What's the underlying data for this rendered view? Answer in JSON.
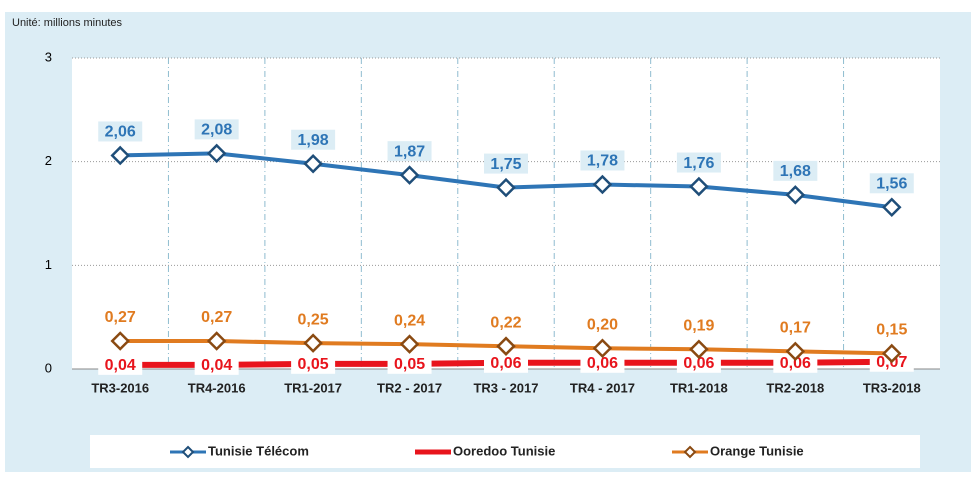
{
  "chart_data": {
    "type": "line",
    "annotation": "Unité: millions minutes",
    "categories": [
      "TR3-2016",
      "TR4-2016",
      "TR1-2017",
      "TR2 - 2017",
      "TR3 - 2017",
      "TR4 - 2017",
      "TR1-2018",
      "TR2-2018",
      "TR3-2018"
    ],
    "series": [
      {
        "name": "Tunisie Télécom",
        "color": "#2e75b6",
        "values": [
          2.06,
          2.08,
          1.98,
          1.87,
          1.75,
          1.78,
          1.76,
          1.68,
          1.56
        ],
        "value_labels": [
          "2,06",
          "2,08",
          "1,98",
          "1,87",
          "1,75",
          "1,78",
          "1,76",
          "1,68",
          "1,56"
        ]
      },
      {
        "name": "Ooredoo Tunisie",
        "color": "#e8141c",
        "values": [
          0.04,
          0.04,
          0.05,
          0.05,
          0.06,
          0.06,
          0.06,
          0.06,
          0.07
        ],
        "value_labels": [
          "0,04",
          "0,04",
          "0,05",
          "0,05",
          "0,06",
          "0,06",
          "0,06",
          "0,06",
          "0,07"
        ]
      },
      {
        "name": "Orange Tunisie",
        "color": "#e07b20",
        "values": [
          0.27,
          0.27,
          0.25,
          0.24,
          0.22,
          0.2,
          0.19,
          0.17,
          0.15
        ],
        "value_labels": [
          "0,27",
          "0,27",
          "0,25",
          "0,24",
          "0,22",
          "0,20",
          "0,19",
          "0,17",
          "0,15"
        ]
      }
    ],
    "ylim": [
      0,
      3
    ],
    "yticks": [
      0,
      1,
      2,
      3
    ],
    "grid": true,
    "legend": "bottom"
  }
}
